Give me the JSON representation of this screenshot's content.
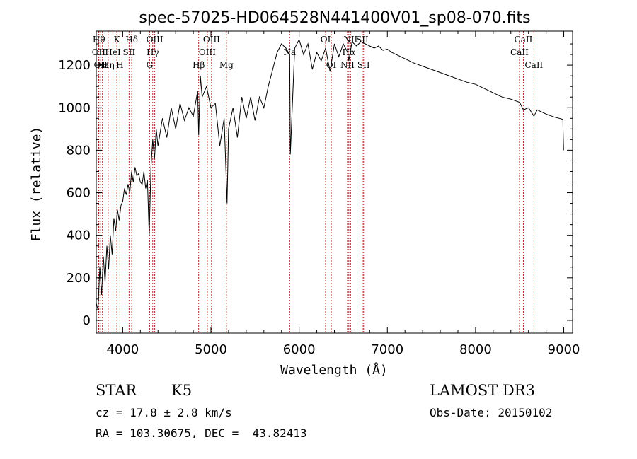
{
  "chart_data": {
    "type": "line",
    "title": "spec-57025-HD064528N441400V01_sp08-070.fits",
    "xlabel": "Wavelength (Å)",
    "ylabel": "Flux (relative)",
    "xlim": [
      3700,
      9100
    ],
    "ylim": [
      -60,
      1360
    ],
    "x_ticks": [
      4000,
      5000,
      6000,
      7000,
      8000,
      9000
    ],
    "y_ticks": [
      0,
      200,
      400,
      600,
      800,
      1000,
      1200
    ],
    "grid": false,
    "series": [
      {
        "x": [
          3700,
          3720,
          3740,
          3760,
          3780,
          3800,
          3820,
          3840,
          3860,
          3880,
          3900,
          3920,
          3940,
          3960,
          3980,
          4000,
          4020,
          4040,
          4060,
          4080,
          4100,
          4120,
          4140,
          4160,
          4180,
          4200,
          4220,
          4240,
          4260,
          4280,
          4300,
          4320,
          4340,
          4360,
          4380,
          4400,
          4450,
          4500,
          4550,
          4600,
          4650,
          4700,
          4750,
          4800,
          4850,
          4861,
          4880,
          4900,
          4950,
          5000,
          5050,
          5100,
          5150,
          5183,
          5200,
          5250,
          5300,
          5350,
          5400,
          5450,
          5500,
          5550,
          5600,
          5650,
          5700,
          5750,
          5800,
          5850,
          5893,
          5900,
          5950,
          6000,
          6050,
          6100,
          6150,
          6200,
          6250,
          6300,
          6350,
          6400,
          6450,
          6500,
          6550,
          6563,
          6600,
          6650,
          6700,
          6750,
          6800,
          6850,
          6900,
          6950,
          7000,
          7050,
          7100,
          7150,
          7200,
          7250,
          7300,
          7400,
          7500,
          7600,
          7700,
          7800,
          7900,
          8000,
          8100,
          8200,
          8300,
          8400,
          8500,
          8542,
          8600,
          8662,
          8700,
          8800,
          8900,
          8950,
          8990,
          8992,
          8998
        ],
        "y": [
          80,
          50,
          250,
          120,
          300,
          180,
          350,
          240,
          400,
          310,
          480,
          420,
          520,
          470,
          540,
          560,
          620,
          590,
          640,
          600,
          700,
          650,
          720,
          680,
          690,
          650,
          640,
          700,
          620,
          660,
          400,
          720,
          850,
          760,
          900,
          820,
          950,
          860,
          1000,
          900,
          1020,
          940,
          1000,
          960,
          1080,
          870,
          1150,
          1050,
          1100,
          1000,
          1020,
          820,
          950,
          550,
          900,
          1000,
          860,
          1050,
          950,
          1050,
          940,
          1050,
          1000,
          1100,
          1180,
          1260,
          1300,
          1280,
          1250,
          780,
          1280,
          1320,
          1250,
          1300,
          1180,
          1260,
          1220,
          1280,
          1170,
          1300,
          1240,
          1300,
          1260,
          1220,
          1310,
          1290,
          1310,
          1300,
          1290,
          1280,
          1290,
          1270,
          1275,
          1260,
          1250,
          1240,
          1230,
          1220,
          1210,
          1195,
          1180,
          1165,
          1150,
          1135,
          1120,
          1110,
          1090,
          1070,
          1050,
          1040,
          1025,
          990,
          1000,
          960,
          990,
          970,
          955,
          950,
          945,
          900,
          800
        ]
      }
    ],
    "lines": [
      {
        "w": 3730,
        "labels": [
          {
            "t": "Hθ",
            "row": 0
          }
        ]
      },
      {
        "w": 3727,
        "labels": [
          {
            "t": "OII",
            "row": 1
          }
        ]
      },
      {
        "w": 3750,
        "labels": [
          {
            "t": "OII",
            "row": 2
          }
        ]
      },
      {
        "w": 3770,
        "labels": [
          {
            "t": "Hε",
            "row": 2
          }
        ]
      },
      {
        "w": 3835,
        "labels": [
          {
            "t": "Hη",
            "row": 2
          }
        ]
      },
      {
        "w": 3889,
        "labels": [
          {
            "t": "HeI",
            "row": 1
          }
        ]
      },
      {
        "w": 3934,
        "labels": [
          {
            "t": "K",
            "row": 0
          }
        ]
      },
      {
        "w": 3968,
        "labels": [
          {
            "t": "H",
            "row": 2
          }
        ]
      },
      {
        "w": 4072,
        "labels": [
          {
            "t": "SII",
            "row": 1
          }
        ]
      },
      {
        "w": 4102,
        "labels": [
          {
            "t": "Hδ",
            "row": 0
          }
        ]
      },
      {
        "w": 4305,
        "labels": [
          {
            "t": "G",
            "row": 2
          }
        ]
      },
      {
        "w": 4340,
        "labels": [
          {
            "t": "Hγ",
            "row": 1
          }
        ]
      },
      {
        "w": 4363,
        "labels": [
          {
            "t": "OIII",
            "row": 0
          }
        ]
      },
      {
        "w": 4861,
        "labels": [
          {
            "t": "Hβ",
            "row": 2
          }
        ]
      },
      {
        "w": 4959,
        "labels": [
          {
            "t": "OIII",
            "row": 1
          }
        ]
      },
      {
        "w": 5007,
        "labels": [
          {
            "t": "OIII",
            "row": 0
          }
        ]
      },
      {
        "w": 5175,
        "labels": [
          {
            "t": "Mg",
            "row": 2
          }
        ]
      },
      {
        "w": 5893,
        "labels": [
          {
            "t": "Na",
            "row": 1
          }
        ]
      },
      {
        "w": 6300,
        "labels": [
          {
            "t": "OI",
            "row": 0
          }
        ]
      },
      {
        "w": 6364,
        "labels": [
          {
            "t": "OI",
            "row": 2
          }
        ]
      },
      {
        "w": 6548,
        "labels": [
          {
            "t": "NII",
            "row": 2
          }
        ]
      },
      {
        "w": 6563,
        "labels": [
          {
            "t": "Hα",
            "row": 1
          }
        ]
      },
      {
        "w": 6583,
        "labels": [
          {
            "t": "NII",
            "row": 0
          }
        ]
      },
      {
        "w": 6716,
        "labels": [
          {
            "t": "SII",
            "row": 0
          }
        ]
      },
      {
        "w": 6731,
        "labels": [
          {
            "t": "SII",
            "row": 2
          }
        ]
      },
      {
        "w": 8498,
        "labels": [
          {
            "t": "CaII",
            "row": 1
          }
        ]
      },
      {
        "w": 8542,
        "labels": [
          {
            "t": "CaII",
            "row": 0
          }
        ]
      },
      {
        "w": 8662,
        "labels": [
          {
            "t": "CaII",
            "row": 2
          }
        ]
      }
    ]
  },
  "info": {
    "object_type": "STAR",
    "subclass": "K5",
    "survey": "LAMOST DR3",
    "cz": "cz = 17.8 ± 2.8 km/s",
    "obs_date": "Obs-Date: 20150102",
    "coords": "RA = 103.30675, DEC =  43.82413"
  },
  "colors": {
    "line_marker": "#b22222",
    "spectrum": "#000000",
    "axes": "#000000"
  }
}
